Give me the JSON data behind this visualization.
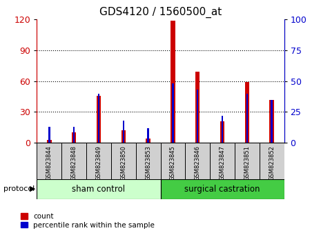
{
  "title": "GDS4120 / 1560500_at",
  "samples": [
    "GSM823844",
    "GSM823848",
    "GSM823849",
    "GSM823850",
    "GSM823853",
    "GSM823845",
    "GSM823846",
    "GSM823847",
    "GSM823851",
    "GSM823852"
  ],
  "count_values": [
    3,
    10,
    46,
    12,
    4,
    119,
    69,
    21,
    59,
    42
  ],
  "percentile_values": [
    13,
    13,
    40,
    18,
    12,
    48,
    43,
    22,
    40,
    35
  ],
  "groups": [
    {
      "label": "sham control",
      "start": 0,
      "end": 5,
      "color": "#ccffcc"
    },
    {
      "label": "surgical castration",
      "start": 5,
      "end": 10,
      "color": "#44cc44"
    }
  ],
  "group_label": "protocol",
  "bar_color_red": "#cc0000",
  "bar_color_blue": "#0000cc",
  "left_axis_color": "#cc0000",
  "right_axis_color": "#0000cc",
  "ylim_left": [
    0,
    120
  ],
  "ylim_right": [
    0,
    100
  ],
  "left_ticks": [
    0,
    30,
    60,
    90,
    120
  ],
  "right_ticks": [
    0,
    25,
    50,
    75,
    100
  ],
  "grid_color": "#000000",
  "background_color": "#ffffff",
  "label_count": "count",
  "label_percentile": "percentile rank within the sample",
  "red_bar_width": 0.18,
  "blue_bar_width": 0.07,
  "sample_box_color": "#d0d0d0",
  "spine_color": "#000000"
}
